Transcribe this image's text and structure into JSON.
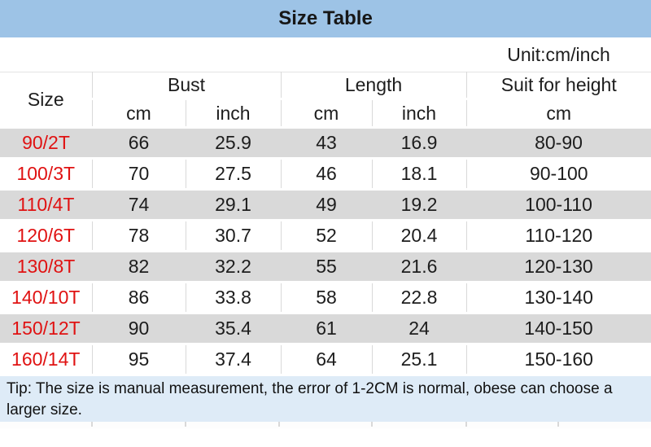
{
  "title": "Size Table",
  "unit_label": "Unit:cm/inch",
  "table": {
    "col_groups": [
      {
        "label": "Size"
      },
      {
        "label": "Bust",
        "sub": [
          "cm",
          "inch"
        ]
      },
      {
        "label": "Length",
        "sub": [
          "cm",
          "inch"
        ]
      },
      {
        "label": "Suit for height",
        "sub": [
          "cm"
        ]
      }
    ],
    "rows": [
      {
        "size": "90/2T",
        "bust_cm": "66",
        "bust_inch": "25.9",
        "length_cm": "43",
        "length_inch": "16.9",
        "height_cm": "80-90"
      },
      {
        "size": "100/3T",
        "bust_cm": "70",
        "bust_inch": "27.5",
        "length_cm": "46",
        "length_inch": "18.1",
        "height_cm": "90-100"
      },
      {
        "size": "110/4T",
        "bust_cm": "74",
        "bust_inch": "29.1",
        "length_cm": "49",
        "length_inch": "19.2",
        "height_cm": "100-110"
      },
      {
        "size": "120/6T",
        "bust_cm": "78",
        "bust_inch": "30.7",
        "length_cm": "52",
        "length_inch": "20.4",
        "height_cm": "110-120"
      },
      {
        "size": "130/8T",
        "bust_cm": "82",
        "bust_inch": "32.2",
        "length_cm": "55",
        "length_inch": "21.6",
        "height_cm": "120-130"
      },
      {
        "size": "140/10T",
        "bust_cm": "86",
        "bust_inch": "33.8",
        "length_cm": "58",
        "length_inch": "22.8",
        "height_cm": "130-140"
      },
      {
        "size": "150/12T",
        "bust_cm": "90",
        "bust_inch": "35.4",
        "length_cm": "61",
        "length_inch": "24",
        "height_cm": "140-150"
      },
      {
        "size": "160/14T",
        "bust_cm": "95",
        "bust_inch": "37.4",
        "length_cm": "64",
        "length_inch": "25.1",
        "height_cm": "150-160"
      }
    ]
  },
  "chart_data": {
    "type": "table",
    "title": "Size Table",
    "unit": "Unit:cm/inch",
    "headers": [
      "Size",
      "Bust cm",
      "Bust inch",
      "Length cm",
      "Length inch",
      "Suit for height cm"
    ],
    "rows": [
      [
        "90/2T",
        66,
        25.9,
        43,
        16.9,
        "80-90"
      ],
      [
        "100/3T",
        70,
        27.5,
        46,
        18.1,
        "90-100"
      ],
      [
        "110/4T",
        74,
        29.1,
        49,
        19.2,
        "100-110"
      ],
      [
        "120/6T",
        78,
        30.7,
        52,
        20.4,
        "110-120"
      ],
      [
        "130/8T",
        82,
        32.2,
        55,
        21.6,
        "120-130"
      ],
      [
        "140/10T",
        86,
        33.8,
        58,
        22.8,
        "130-140"
      ],
      [
        "150/12T",
        90,
        35.4,
        61,
        24,
        "140-150"
      ],
      [
        "160/14T",
        95,
        37.4,
        64,
        25.1,
        "150-160"
      ]
    ]
  },
  "tip": "Tip: The size is manual measurement, the error of 1-2CM is normal, obese can choose a larger size.",
  "colors": {
    "title_bg": "#9dc3e6",
    "row_alt_bg": "#d9d9d9",
    "tip_bg": "#deebf7",
    "size_text_red": "#e01212",
    "border": "#d9d9d9"
  }
}
